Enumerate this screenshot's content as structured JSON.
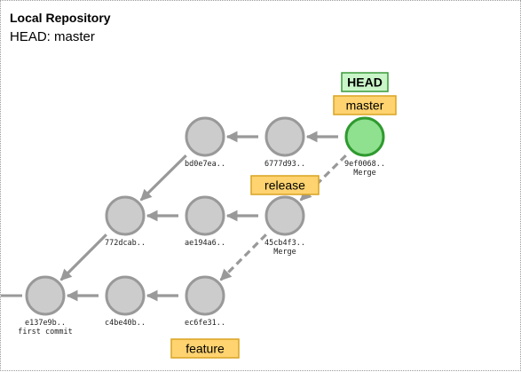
{
  "title": "Local Repository",
  "subtitle": "HEAD: master",
  "colors": {
    "commit_fill": "#cccccc",
    "commit_stroke": "#999999",
    "head_commit_fill": "#8fe08f",
    "head_commit_stroke": "#2f9a2f",
    "edge": "#999999",
    "branch_fill": "#ffd370",
    "branch_stroke": "#d9a420",
    "head_fill": "#c9f5c9",
    "head_stroke": "#3a9a3a"
  },
  "commits": [
    {
      "id": "e137e9b..",
      "message": "first commit"
    },
    {
      "id": "c4be40b..",
      "message": ""
    },
    {
      "id": "ec6fe31..",
      "message": ""
    },
    {
      "id": "772dcab..",
      "message": ""
    },
    {
      "id": "ae194a6..",
      "message": ""
    },
    {
      "id": "45cb4f3..",
      "message": "Merge"
    },
    {
      "id": "bd0e7ea..",
      "message": ""
    },
    {
      "id": "6777d93..",
      "message": ""
    },
    {
      "id": "9ef0068..",
      "message": "Merge"
    }
  ],
  "edges": [
    {
      "from": "c4be40b..",
      "to": "e137e9b..",
      "style": "solid"
    },
    {
      "from": "ec6fe31..",
      "to": "c4be40b..",
      "style": "solid"
    },
    {
      "from": "772dcab..",
      "to": "e137e9b..",
      "style": "solid"
    },
    {
      "from": "ae194a6..",
      "to": "772dcab..",
      "style": "solid"
    },
    {
      "from": "45cb4f3..",
      "to": "ae194a6..",
      "style": "solid"
    },
    {
      "from": "45cb4f3..",
      "to": "ec6fe31..",
      "style": "dashed"
    },
    {
      "from": "bd0e7ea..",
      "to": "772dcab..",
      "style": "solid"
    },
    {
      "from": "6777d93..",
      "to": "bd0e7ea..",
      "style": "solid"
    },
    {
      "from": "9ef0068..",
      "to": "6777d93..",
      "style": "solid"
    },
    {
      "from": "9ef0068..",
      "to": "45cb4f3..",
      "style": "dashed"
    }
  ],
  "head": {
    "label": "HEAD",
    "target": "master"
  },
  "branches": [
    {
      "name": "master",
      "commit": "9ef0068.."
    },
    {
      "name": "release",
      "commit": "45cb4f3.."
    },
    {
      "name": "feature",
      "commit": "ec6fe31.."
    }
  ]
}
